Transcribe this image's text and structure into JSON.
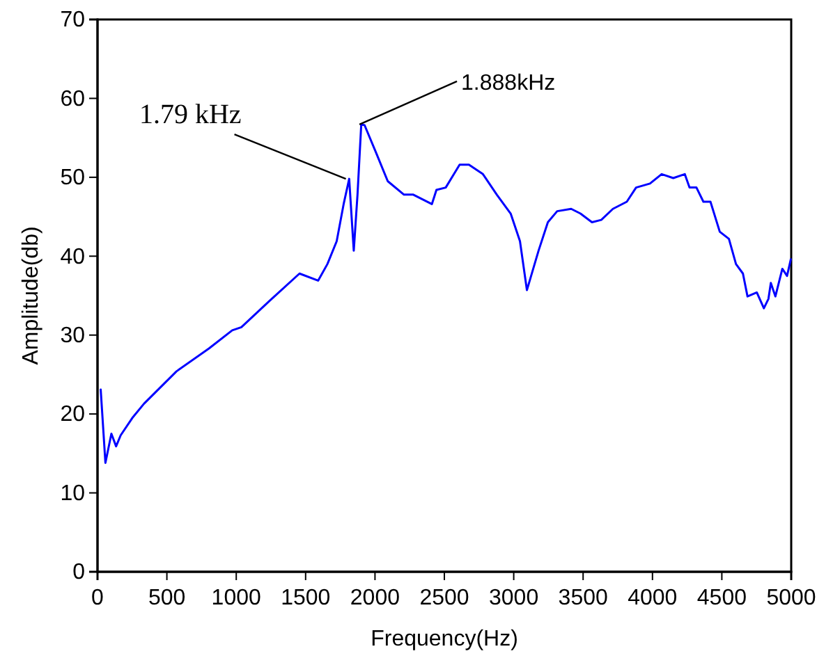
{
  "chart_data": {
    "type": "line",
    "xlabel": "Frequency(Hz)",
    "ylabel": "Amplitude(db)",
    "xlim": [
      0,
      5000
    ],
    "ylim": [
      0,
      70
    ],
    "xticks": [
      0,
      500,
      1000,
      1500,
      2000,
      2500,
      3000,
      3500,
      4000,
      4500,
      5000
    ],
    "yticks": [
      0,
      10,
      20,
      30,
      40,
      50,
      60,
      70
    ],
    "grid": false,
    "marker": "none",
    "line_style": "solid",
    "annotations": [
      {
        "text": "1.79 kHz",
        "x": 1790,
        "y": 49.8
      },
      {
        "text": "1.888kHz",
        "x": 1888,
        "y": 56.7
      }
    ],
    "series": [
      {
        "color": "#0000ff",
        "x": [
          23,
          57,
          100,
          134,
          167,
          251,
          335,
          569,
          803,
          971,
          1037,
          1238,
          1456,
          1590,
          1657,
          1724,
          1774,
          1814,
          1847,
          1874,
          1901,
          1925,
          2008,
          2092,
          2209,
          2276,
          2410,
          2443,
          2510,
          2610,
          2677,
          2778,
          2878,
          2978,
          3045,
          3095,
          3179,
          3246,
          3313,
          3414,
          3481,
          3564,
          3631,
          3715,
          3815,
          3882,
          3982,
          4066,
          4150,
          4233,
          4267,
          4317,
          4367,
          4418,
          4485,
          4551,
          4602,
          4652,
          4685,
          4752,
          4803,
          4836,
          4853,
          4886,
          4936,
          4970,
          4997
        ],
        "values": [
          23.1,
          13.8,
          17.5,
          15.9,
          17.3,
          19.5,
          21.3,
          25.4,
          28.3,
          30.6,
          31.0,
          34.3,
          37.8,
          36.9,
          39.0,
          41.9,
          46.6,
          49.8,
          40.7,
          47.8,
          56.7,
          56.6,
          53.1,
          49.5,
          47.8,
          47.8,
          46.6,
          48.4,
          48.7,
          51.6,
          51.6,
          50.4,
          47.8,
          45.4,
          41.9,
          35.7,
          40.7,
          44.3,
          45.7,
          46.0,
          45.4,
          44.3,
          44.6,
          46.0,
          46.9,
          48.7,
          49.2,
          50.4,
          49.9,
          50.4,
          48.7,
          48.7,
          46.9,
          46.9,
          43.1,
          42.2,
          39.0,
          37.8,
          34.9,
          35.4,
          33.4,
          34.6,
          36.6,
          34.9,
          38.4,
          37.5,
          39.6
        ]
      }
    ]
  }
}
